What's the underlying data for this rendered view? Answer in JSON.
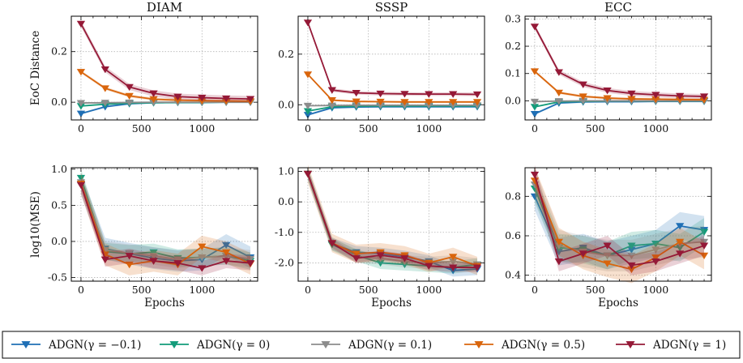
{
  "colors": {
    "blue": "#1f6fb5",
    "teal": "#139b7a",
    "grey": "#8c8c8c",
    "orange": "#d9650c",
    "crimson": "#951937"
  },
  "legend": [
    {
      "key": "blue",
      "label": "ADGN(γ = −0.1)"
    },
    {
      "key": "teal",
      "label": "ADGN(γ = 0)"
    },
    {
      "key": "grey",
      "label": "ADGN(γ = 0.1)"
    },
    {
      "key": "orange",
      "label": "ADGN(γ = 0.5)"
    },
    {
      "key": "crimson",
      "label": "ADGN(γ = 1)"
    }
  ],
  "chart_data": [
    {
      "type": "line",
      "row": "top",
      "title": "DIAM",
      "ylabel": "EoC Distance",
      "xlabel": "",
      "xlim": [
        -80,
        1460
      ],
      "ylim": [
        -0.07,
        0.34
      ],
      "yticks": [
        0.0,
        0.2
      ],
      "ytick_labels": [
        "0.0",
        "0.2"
      ],
      "xticks": [
        0,
        500,
        1000
      ],
      "xtick_labels": [
        "0",
        "500",
        "1000"
      ],
      "x": [
        0,
        200,
        400,
        600,
        800,
        1000,
        1200,
        1400
      ],
      "series": [
        {
          "key": "blue",
          "values": [
            -0.045,
            -0.018,
            -0.006,
            -0.002,
            -0.001,
            -0.001,
            0.0,
            0.0
          ],
          "band": 0.004
        },
        {
          "key": "teal",
          "values": [
            -0.015,
            -0.008,
            -0.004,
            -0.002,
            -0.001,
            -0.001,
            0.0,
            0.0
          ],
          "band": 0.003
        },
        {
          "key": "grey",
          "values": [
            -0.003,
            -0.002,
            -0.001,
            0.0,
            0.0,
            0.0,
            0.0,
            0.0
          ],
          "band": 0.002
        },
        {
          "key": "orange",
          "values": [
            0.12,
            0.055,
            0.025,
            0.012,
            0.008,
            0.006,
            0.005,
            0.004
          ],
          "band": 0.006
        },
        {
          "key": "crimson",
          "values": [
            0.31,
            0.13,
            0.06,
            0.035,
            0.022,
            0.018,
            0.015,
            0.013
          ],
          "band": 0.012
        }
      ]
    },
    {
      "type": "line",
      "row": "top",
      "title": "SSSP",
      "ylabel": "",
      "xlabel": "",
      "xlim": [
        -80,
        1460
      ],
      "ylim": [
        -0.06,
        0.35
      ],
      "yticks": [
        0.0,
        0.2
      ],
      "ytick_labels": [
        "0.0",
        "0.2"
      ],
      "xticks": [
        0,
        500,
        1000
      ],
      "xtick_labels": [
        "0",
        "500",
        "1000"
      ],
      "x": [
        0,
        200,
        400,
        600,
        800,
        1000,
        1200,
        1400
      ],
      "series": [
        {
          "key": "blue",
          "values": [
            -0.04,
            -0.012,
            -0.009,
            -0.008,
            -0.008,
            -0.008,
            -0.008,
            -0.008
          ],
          "band": 0.004
        },
        {
          "key": "teal",
          "values": [
            -0.025,
            -0.008,
            -0.006,
            -0.005,
            -0.005,
            -0.005,
            -0.005,
            -0.005
          ],
          "band": 0.003
        },
        {
          "key": "grey",
          "values": [
            -0.004,
            -0.003,
            -0.002,
            -0.002,
            -0.002,
            -0.002,
            -0.002,
            -0.002
          ],
          "band": 0.002
        },
        {
          "key": "orange",
          "values": [
            0.12,
            0.018,
            0.013,
            0.012,
            0.011,
            0.011,
            0.011,
            0.011
          ],
          "band": 0.004
        },
        {
          "key": "crimson",
          "values": [
            0.325,
            0.058,
            0.047,
            0.044,
            0.043,
            0.042,
            0.042,
            0.041
          ],
          "band": 0.007
        }
      ]
    },
    {
      "type": "line",
      "row": "top",
      "title": "ECC",
      "ylabel": "",
      "xlabel": "",
      "xlim": [
        -80,
        1460
      ],
      "ylim": [
        -0.07,
        0.31
      ],
      "yticks": [
        0.0,
        0.1,
        0.2,
        0.3
      ],
      "ytick_labels": [
        "0.0",
        "0.1",
        "0.2",
        "0.3"
      ],
      "xticks": [
        0,
        500,
        1000
      ],
      "xtick_labels": [
        "0",
        "500",
        "1000"
      ],
      "x": [
        0,
        200,
        400,
        600,
        800,
        1000,
        1200,
        1400
      ],
      "series": [
        {
          "key": "blue",
          "values": [
            -0.048,
            -0.008,
            -0.004,
            -0.003,
            -0.003,
            -0.002,
            -0.002,
            -0.002
          ],
          "band": 0.004
        },
        {
          "key": "teal",
          "values": [
            -0.022,
            -0.004,
            -0.002,
            -0.001,
            -0.001,
            -0.001,
            -0.001,
            -0.001
          ],
          "band": 0.003
        },
        {
          "key": "grey",
          "values": [
            -0.003,
            -0.001,
            0.0,
            0.0,
            0.0,
            0.0,
            0.0,
            0.0
          ],
          "band": 0.002
        },
        {
          "key": "orange",
          "values": [
            0.108,
            0.03,
            0.016,
            0.01,
            0.007,
            0.006,
            0.005,
            0.004
          ],
          "band": 0.005
        },
        {
          "key": "crimson",
          "values": [
            0.272,
            0.105,
            0.06,
            0.038,
            0.027,
            0.022,
            0.018,
            0.016
          ],
          "band": 0.009
        }
      ]
    },
    {
      "type": "line",
      "row": "bottom",
      "title": "",
      "ylabel": "log10(MSE)",
      "xlabel": "Epochs",
      "xlim": [
        -80,
        1460
      ],
      "ylim": [
        -0.55,
        1.02
      ],
      "yticks": [
        -0.5,
        0.0,
        0.5,
        1.0
      ],
      "ytick_labels": [
        "-0.5",
        "0.0",
        "0.5",
        "1.0"
      ],
      "xticks": [
        0,
        500,
        1000
      ],
      "xtick_labels": [
        "0",
        "500",
        "1000"
      ],
      "x": [
        0,
        200,
        400,
        600,
        800,
        1000,
        1200,
        1400
      ],
      "series": [
        {
          "key": "blue",
          "values": [
            0.79,
            -0.1,
            -0.17,
            -0.23,
            -0.27,
            -0.25,
            -0.05,
            -0.22
          ],
          "band": 0.15
        },
        {
          "key": "teal",
          "values": [
            0.88,
            -0.14,
            -0.17,
            -0.15,
            -0.23,
            -0.22,
            -0.2,
            -0.27
          ],
          "band": 0.12
        },
        {
          "key": "grey",
          "values": [
            0.82,
            -0.12,
            -0.16,
            -0.2,
            -0.25,
            -0.22,
            -0.2,
            -0.24
          ],
          "band": 0.12
        },
        {
          "key": "orange",
          "values": [
            0.8,
            -0.18,
            -0.32,
            -0.27,
            -0.32,
            -0.07,
            -0.15,
            -0.31
          ],
          "band": 0.15
        },
        {
          "key": "crimson",
          "values": [
            0.78,
            -0.25,
            -0.2,
            -0.27,
            -0.3,
            -0.37,
            -0.27,
            -0.3
          ],
          "band": 0.1
        }
      ]
    },
    {
      "type": "line",
      "row": "bottom",
      "title": "",
      "ylabel": "",
      "xlabel": "Epochs",
      "xlim": [
        -80,
        1460
      ],
      "ylim": [
        -2.6,
        1.12
      ],
      "yticks": [
        -2.0,
        -1.0,
        0.0,
        1.0
      ],
      "ytick_labels": [
        "-2.0",
        "-1.0",
        "0.0",
        "1.0"
      ],
      "xticks": [
        0,
        500,
        1000
      ],
      "xtick_labels": [
        "0",
        "500",
        "1000"
      ],
      "x": [
        0,
        200,
        400,
        600,
        800,
        1000,
        1200,
        1400
      ],
      "series": [
        {
          "key": "blue",
          "values": [
            0.92,
            -1.38,
            -1.65,
            -1.7,
            -1.8,
            -1.95,
            -2.25,
            -2.2
          ],
          "band": 0.2
        },
        {
          "key": "teal",
          "values": [
            0.92,
            -1.4,
            -1.75,
            -2.0,
            -2.05,
            -2.1,
            -2.15,
            -2.05
          ],
          "band": 0.2
        },
        {
          "key": "grey",
          "values": [
            0.92,
            -1.35,
            -1.8,
            -1.85,
            -1.95,
            -2.0,
            -1.95,
            -2.05
          ],
          "band": 0.2
        },
        {
          "key": "orange",
          "values": [
            0.92,
            -1.35,
            -1.7,
            -1.65,
            -1.75,
            -2.0,
            -1.8,
            -2.1
          ],
          "band": 0.3
        },
        {
          "key": "crimson",
          "values": [
            0.92,
            -1.35,
            -1.85,
            -1.75,
            -1.85,
            -2.1,
            -2.15,
            -2.15
          ],
          "band": 0.15
        }
      ]
    },
    {
      "type": "line",
      "row": "bottom",
      "title": "",
      "ylabel": "",
      "xlabel": "Epochs",
      "xlim": [
        -80,
        1460
      ],
      "ylim": [
        0.37,
        0.945
      ],
      "yticks": [
        0.4,
        0.6,
        0.8
      ],
      "ytick_labels": [
        "0.4",
        "0.6",
        "0.8"
      ],
      "xticks": [
        0,
        500,
        1000
      ],
      "xtick_labels": [
        "0",
        "500",
        "1000"
      ],
      "x": [
        0,
        200,
        400,
        600,
        800,
        1000,
        1200,
        1400
      ],
      "series": [
        {
          "key": "blue",
          "values": [
            0.8,
            0.52,
            0.54,
            0.5,
            0.53,
            0.56,
            0.65,
            0.63
          ],
          "band": 0.07
        },
        {
          "key": "teal",
          "values": [
            0.84,
            0.54,
            0.53,
            0.5,
            0.55,
            0.56,
            0.54,
            0.62
          ],
          "band": 0.07
        },
        {
          "key": "grey",
          "values": [
            0.86,
            0.55,
            0.52,
            0.5,
            0.5,
            0.53,
            0.56,
            0.57
          ],
          "band": 0.08
        },
        {
          "key": "orange",
          "values": [
            0.88,
            0.57,
            0.5,
            0.46,
            0.43,
            0.49,
            0.57,
            0.5
          ],
          "band": 0.07
        },
        {
          "key": "crimson",
          "values": [
            0.91,
            0.47,
            0.51,
            0.55,
            0.45,
            0.47,
            0.51,
            0.55
          ],
          "band": 0.05
        }
      ]
    }
  ]
}
